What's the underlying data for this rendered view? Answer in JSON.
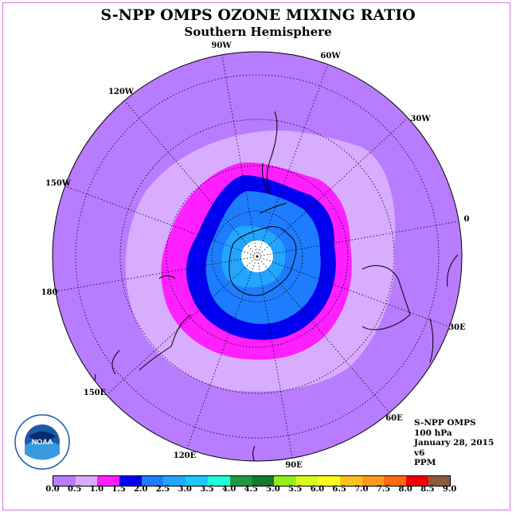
{
  "title": "S-NPP OMPS OZONE MIXING RATIO",
  "subtitle": "Southern Hemisphere",
  "longitude_labels": [
    "90W",
    "60W",
    "30W",
    "0",
    "30E",
    "60E",
    "90E",
    "120E",
    "150E",
    "180",
    "150W",
    "120W"
  ],
  "info": {
    "instrument": "S-NPP OMPS",
    "level": "100 hPa",
    "date": "January 28, 2015",
    "version": "v6",
    "units": "PPM"
  },
  "colorbar": {
    "colors": [
      "#b87cff",
      "#d8acff",
      "#ff20ff",
      "#0000ee",
      "#1e7cff",
      "#22a6ff",
      "#1ec8ff",
      "#20ffd8",
      "#1e9a3e",
      "#157a2e",
      "#96ee20",
      "#d8ff20",
      "#ffff20",
      "#ffc020",
      "#ff9a20",
      "#ff6a10",
      "#ee0000",
      "#8c5a3a"
    ],
    "ticks": [
      "0.0",
      "0.5",
      "1.0",
      "1.5",
      "2.0",
      "2.5",
      "3.0",
      "3.5",
      "4.0",
      "4.5",
      "5.0",
      "5.5",
      "6.0",
      "6.5",
      "7.0",
      "7.5",
      "8.0",
      "8.5",
      "9.0"
    ]
  },
  "logo_text": "NOAA",
  "colors": {
    "band_lt0_5": "#b87cff",
    "band_0_5_1": "#d8acff",
    "band_1_1_5": "#ff20ff",
    "band_1_5_2": "#0000ee",
    "band_2_2_5": "#1e7cff",
    "band_2_5_3": "#22a6ff"
  }
}
